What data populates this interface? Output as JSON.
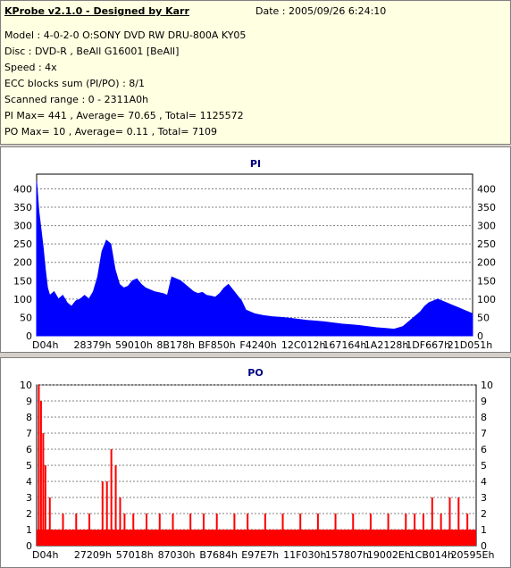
{
  "header": {
    "title": "KProbe v2.1.0 - Designed by Karr",
    "date": "Date : 2005/09/26 6:24:10",
    "lines": [
      "Model : 4-0-2-0 O:SONY    DVD RW DRU-800A  KY05",
      "Disc : DVD-R , BeAll G16001 [BeAll]",
      "Speed : 4x",
      "ECC blocks sum (PI/PO) : 8/1",
      "Scanned range : 0 - 2311A0h",
      "PI Max= 441 , Average= 70.65 , Total= 1125572",
      "PO Max= 10 , Average= 0.11 , Total= 7109"
    ]
  },
  "chart_data": [
    {
      "type": "area",
      "title": "PI",
      "color": "#0000ff",
      "ylim": [
        0,
        440
      ],
      "yticks": [
        0,
        50,
        100,
        150,
        200,
        250,
        300,
        350,
        400
      ],
      "xticks": [
        "D04h",
        "28379h",
        "59010h",
        "8B178h",
        "BF850h",
        "F4240h",
        "12C012h",
        "167164h",
        "1A2128h",
        "1DF667h",
        "21D051h"
      ],
      "series": [
        {
          "x": [
            0,
            0.005,
            0.01,
            0.015,
            0.02,
            0.025,
            0.03,
            0.04,
            0.05,
            0.06,
            0.07,
            0.08,
            0.09,
            0.1,
            0.11,
            0.12,
            0.13,
            0.14,
            0.15,
            0.16,
            0.17,
            0.18,
            0.19,
            0.2,
            0.21,
            0.22,
            0.23,
            0.24,
            0.25,
            0.27,
            0.29,
            0.3,
            0.31,
            0.32,
            0.33,
            0.34,
            0.35,
            0.36,
            0.37,
            0.38,
            0.39,
            0.4,
            0.41,
            0.42,
            0.43,
            0.44,
            0.45,
            0.46,
            0.47,
            0.48,
            0.5,
            0.52,
            0.54,
            0.56,
            0.58,
            0.6,
            0.62,
            0.64,
            0.66,
            0.68,
            0.7,
            0.72,
            0.74,
            0.76,
            0.78,
            0.8,
            0.82,
            0.84,
            0.85,
            0.86,
            0.87,
            0.88,
            0.89,
            0.9,
            0.91,
            0.92,
            0.93,
            0.94,
            0.95,
            0.96,
            0.97,
            0.98,
            0.99,
            1.0
          ],
          "values": [
            420,
            340,
            290,
            240,
            180,
            130,
            110,
            120,
            100,
            110,
            90,
            80,
            95,
            100,
            110,
            100,
            120,
            160,
            230,
            260,
            250,
            180,
            140,
            130,
            135,
            150,
            155,
            140,
            130,
            120,
            115,
            110,
            160,
            155,
            150,
            140,
            130,
            120,
            115,
            118,
            110,
            108,
            105,
            115,
            130,
            140,
            125,
            110,
            95,
            70,
            60,
            55,
            52,
            50,
            48,
            45,
            42,
            40,
            38,
            35,
            32,
            30,
            28,
            25,
            22,
            20,
            18,
            25,
            35,
            45,
            55,
            65,
            80,
            90,
            95,
            100,
            95,
            90,
            85,
            80,
            75,
            70,
            65,
            60
          ]
        }
      ]
    },
    {
      "type": "bar",
      "title": "PO",
      "color": "#ff0000",
      "ylim": [
        0,
        10
      ],
      "yticks": [
        0,
        1,
        2,
        3,
        4,
        5,
        6,
        7,
        8,
        9,
        10
      ],
      "xticks": [
        "D04h",
        "27209h",
        "57018h",
        "87030h",
        "B7684h",
        "E97E7h",
        "11F030h",
        "157807h",
        "19002Eh",
        "1CB014h",
        "20595Eh"
      ],
      "series": [
        {
          "x": [
            0.005,
            0.01,
            0.015,
            0.02,
            0.03,
            0.06,
            0.09,
            0.12,
            0.15,
            0.16,
            0.17,
            0.18,
            0.19,
            0.2,
            0.22,
            0.25,
            0.28,
            0.31,
            0.35,
            0.38,
            0.41,
            0.45,
            0.48,
            0.52,
            0.56,
            0.6,
            0.64,
            0.68,
            0.72,
            0.76,
            0.8,
            0.84,
            0.86,
            0.88,
            0.9,
            0.92,
            0.94,
            0.96,
            0.98
          ],
          "values": [
            10,
            9,
            7,
            5,
            3,
            2,
            2,
            2,
            4,
            4,
            6,
            5,
            3,
            2,
            2,
            2,
            2,
            2,
            2,
            2,
            2,
            2,
            2,
            2,
            2,
            2,
            2,
            2,
            2,
            2,
            2,
            2,
            2,
            2,
            3,
            2,
            3,
            3,
            2
          ]
        }
      ]
    }
  ]
}
